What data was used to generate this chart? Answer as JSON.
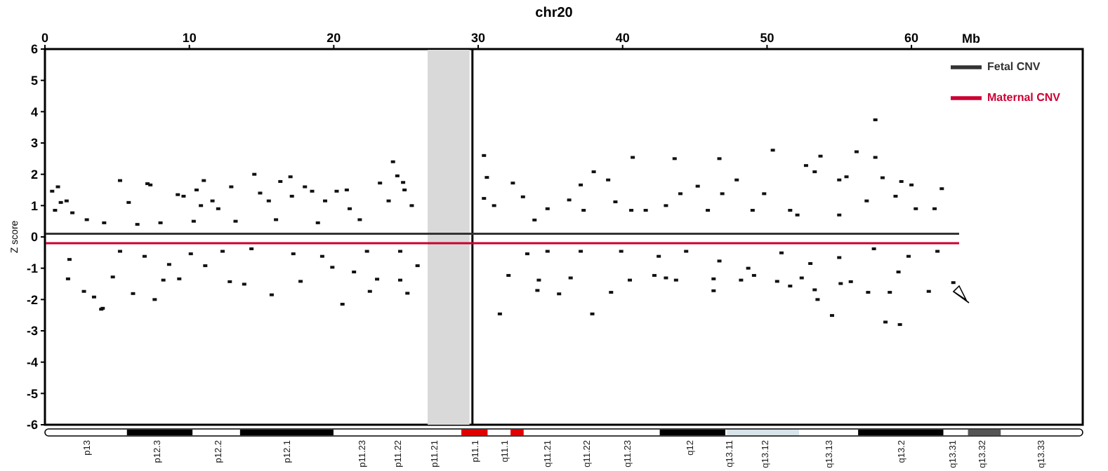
{
  "chart_data": {
    "type": "scatter",
    "title": "chr20",
    "xlabel": "Mb",
    "ylabel": "Z score",
    "xlim": [
      0,
      63.3
    ],
    "xticks": [
      0,
      10,
      20,
      30,
      40,
      50,
      60
    ],
    "ylim": [
      -6,
      6
    ],
    "yticks": [
      -6,
      -5,
      -4,
      -3,
      -2,
      -1,
      0,
      1,
      2,
      3,
      4,
      5,
      6
    ],
    "legend": "top right",
    "series": [
      {
        "marker": "square",
        "color": "#111111",
        "x": [
          0.5,
          0.9,
          0.7,
          1.1,
          1.5,
          1.9,
          5.2,
          5.8,
          7.1,
          7.3,
          9.2,
          9.6,
          10.5,
          11.0,
          10.8,
          11.6,
          12.0,
          12.9,
          14.5,
          14.9,
          15.5,
          16.3,
          17.0,
          17.1,
          18.0,
          18.5,
          19.4,
          20.2,
          20.9,
          21.1,
          23.2,
          24.1,
          24.4,
          24.8,
          24.9,
          25.4,
          23.8,
          2.9,
          4.1,
          6.4,
          8.0,
          10.3,
          13.2,
          16.0,
          18.9,
          21.8,
          1.6,
          1.7,
          2.7,
          3.4,
          3.9,
          4.0,
          4.7,
          6.1,
          7.6,
          8.2,
          8.6,
          9.3,
          11.1,
          12.8,
          13.8,
          15.7,
          17.7,
          19.9,
          20.6,
          21.4,
          22.5,
          23.0,
          24.6,
          25.1,
          25.8,
          5.2,
          6.9,
          10.1,
          12.3,
          14.3,
          17.2,
          19.2,
          22.3,
          24.6,
          30.4,
          30.4,
          30.6,
          31.1,
          32.4,
          33.1,
          34.8,
          36.3,
          37.1,
          38.0,
          39.0,
          40.7,
          39.5,
          41.6,
          43.6,
          44.0,
          45.2,
          46.7,
          46.9,
          47.9,
          50.4,
          49.8,
          52.7,
          53.7,
          53.3,
          55.0,
          56.2,
          55.5,
          57.5,
          57.5,
          58.0,
          59.3,
          60.0,
          62.1,
          60.3,
          61.6,
          51.6,
          33.9,
          37.3,
          40.6,
          43.0,
          45.9,
          49.0,
          52.1,
          55.0,
          56.9,
          58.9,
          31.5,
          32.1,
          34.1,
          34.2,
          35.6,
          36.4,
          37.9,
          39.2,
          40.5,
          42.2,
          43.0,
          43.7,
          46.3,
          46.3,
          48.2,
          49.1,
          50.7,
          51.6,
          52.4,
          53.3,
          53.5,
          54.5,
          55.1,
          55.8,
          57.0,
          58.2,
          58.5,
          59.2,
          59.1,
          61.2,
          62.9,
          33.4,
          34.8,
          37.1,
          39.9,
          42.5,
          44.4,
          46.7,
          48.7,
          51.0,
          53.0,
          55.0,
          57.4,
          59.8,
          61.8
        ],
        "values": [
          1.46,
          1.6,
          0.85,
          1.1,
          1.15,
          0.77,
          1.8,
          1.1,
          1.7,
          1.66,
          1.35,
          1.3,
          1.5,
          1.8,
          1.0,
          1.15,
          0.9,
          1.6,
          2.0,
          1.4,
          1.15,
          1.77,
          1.92,
          1.3,
          1.6,
          1.46,
          1.15,
          1.46,
          1.5,
          0.9,
          1.72,
          2.4,
          1.95,
          1.74,
          1.5,
          1.0,
          1.15,
          0.55,
          0.45,
          0.4,
          0.45,
          0.5,
          0.5,
          0.55,
          0.45,
          0.55,
          -1.34,
          -0.72,
          -1.74,
          -1.92,
          -2.31,
          -2.28,
          -1.28,
          -1.81,
          -2.0,
          -1.38,
          -0.88,
          -1.34,
          -0.92,
          -1.43,
          -1.51,
          -1.85,
          -1.42,
          -0.97,
          -2.15,
          -1.12,
          -1.74,
          -1.35,
          -1.38,
          -1.8,
          -0.92,
          -0.46,
          -0.62,
          -0.54,
          -0.46,
          -0.38,
          -0.54,
          -0.62,
          -0.46,
          -0.46,
          1.23,
          2.6,
          1.9,
          1.0,
          1.72,
          1.28,
          0.9,
          1.18,
          1.66,
          2.08,
          1.82,
          2.54,
          1.12,
          0.85,
          2.5,
          1.38,
          1.62,
          2.5,
          1.38,
          1.82,
          2.77,
          1.38,
          2.28,
          2.58,
          2.08,
          1.82,
          2.72,
          1.92,
          3.74,
          2.54,
          1.89,
          1.77,
          1.66,
          1.54,
          0.9,
          0.9,
          0.85,
          0.54,
          0.85,
          0.85,
          1.0,
          0.85,
          0.85,
          0.7,
          0.7,
          1.15,
          1.3,
          -2.46,
          -1.23,
          -1.71,
          -1.38,
          -1.82,
          -1.31,
          -2.46,
          -1.77,
          -1.38,
          -1.23,
          -1.31,
          -1.38,
          -1.72,
          -1.34,
          -1.38,
          -1.23,
          -1.42,
          -1.57,
          -1.31,
          -1.69,
          -2.0,
          -2.51,
          -1.49,
          -1.43,
          -1.77,
          -2.72,
          -1.77,
          -2.8,
          -1.12,
          -1.74,
          -1.46,
          -0.54,
          -0.46,
          -0.46,
          -0.46,
          -0.62,
          -0.46,
          -0.77,
          -1.0,
          -0.51,
          -0.85,
          -0.66,
          -0.38,
          -0.62,
          -0.46
        ]
      },
      {
        "type": "line",
        "name": "Fetal CNV",
        "color": "#333333",
        "x": [
          0,
          63.3
        ],
        "values": [
          0.1,
          0.1
        ]
      },
      {
        "type": "line",
        "name": "Maternal CNV",
        "color": "#cc0033",
        "x": [
          0,
          63.3
        ],
        "values": [
          -0.2,
          -0.2
        ]
      }
    ],
    "bands": [
      {
        "axis": "x",
        "from": 26.5,
        "to": 29.4,
        "color": "#d9d9d9"
      }
    ],
    "ref_lines": [
      {
        "axis": "x",
        "value": 29.6,
        "color": "#000000"
      }
    ],
    "annotations": [
      "p13",
      "p12.3",
      "p12.2",
      "p12.1",
      "p11.23",
      "p11.22",
      "p11.21",
      "p11.1",
      "q11.1",
      "q11.21",
      "q11.22",
      "q11.23",
      "q12",
      "q13.11",
      "q13.12",
      "q13.13",
      "q13.2",
      "q13.31",
      "q13.32",
      "q13.33"
    ]
  }
}
